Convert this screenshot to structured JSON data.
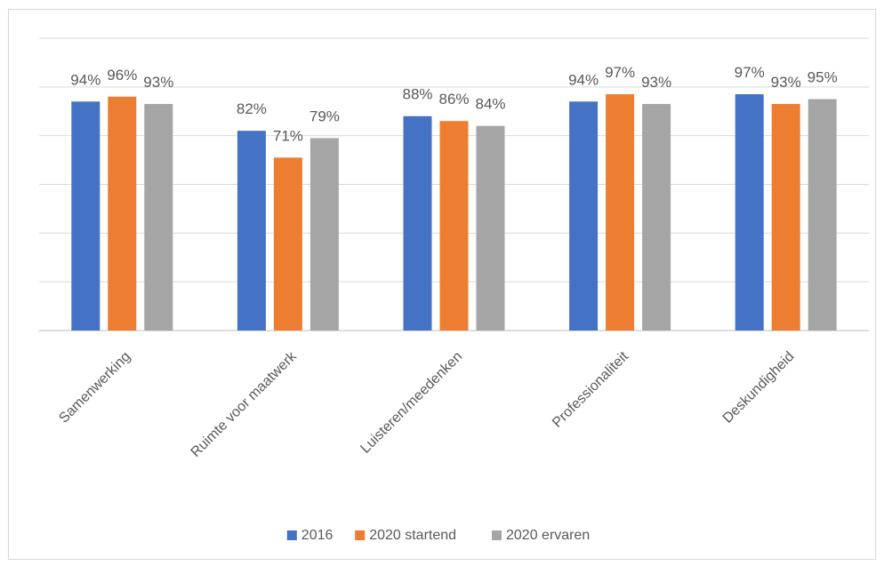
{
  "chart_data": {
    "type": "bar",
    "categories": [
      "Samenwerking",
      "Ruimte voor maatwerk",
      "Luisteren/meedenken",
      "Professionaliteit",
      "Deskundigheid"
    ],
    "series": [
      {
        "name": "2016",
        "values": [
          94,
          82,
          88,
          94,
          97
        ],
        "labels": [
          "94%",
          "82%",
          "88%",
          "94%",
          "97%"
        ],
        "color": "#4472c4"
      },
      {
        "name": "2020 startend",
        "values": [
          96,
          71,
          86,
          97,
          93
        ],
        "labels": [
          "96%",
          "71%",
          "86%",
          "97%",
          "93%"
        ],
        "color": "#ed7d31"
      },
      {
        "name": "2020 ervaren",
        "values": [
          93,
          79,
          84,
          93,
          95
        ],
        "labels": [
          "93%",
          "79%",
          "84%",
          "93%",
          "95%"
        ],
        "color": "#a5a5a5"
      }
    ],
    "ylim": [
      0,
      120
    ],
    "gridlines": true,
    "legend_position": "bottom"
  }
}
